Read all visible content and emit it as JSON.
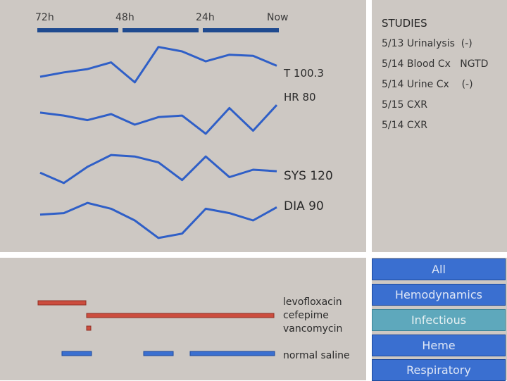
{
  "timeline": {
    "ticks": [
      "72h",
      "48h",
      "24h",
      "Now"
    ]
  },
  "vitals": [
    {
      "label": "T 100.3",
      "values": [
        98.2,
        98.6,
        98.9,
        99.5,
        97.7,
        100.9,
        100.5,
        99.6,
        100.2,
        100.1,
        99.2
      ]
    },
    {
      "label": "HR 80",
      "values": [
        85,
        83,
        80,
        84,
        77,
        82,
        83,
        71,
        88,
        73,
        90
      ]
    },
    {
      "label": "SYS 120",
      "values": [
        118,
        111,
        122,
        130,
        129,
        125,
        113,
        129,
        115,
        120,
        119
      ]
    },
    {
      "label": "DIA 90",
      "values": [
        88,
        89,
        96,
        92,
        84,
        72,
        75,
        92,
        89,
        84,
        93
      ]
    }
  ],
  "studies": {
    "title": "STUDIES",
    "items": [
      "5/13 Urinalysis  (-)",
      "5/14 Blood Cx   NGTD",
      "5/14 Urine Cx    (-)",
      "5/15 CXR",
      "5/14 CXR"
    ]
  },
  "medications": [
    {
      "name": "levofloxacin",
      "color": "#cc4d3e"
    },
    {
      "name": "cefepime",
      "color": "#cc4d3e"
    },
    {
      "name": "vancomycin",
      "color": "#cc4d3e"
    },
    {
      "name": "normal saline",
      "color": "#3a6fd0"
    }
  ],
  "filters": {
    "items": [
      "All",
      "Hemodynamics",
      "Infectious",
      "Heme",
      "Respiratory"
    ],
    "active": "Infectious"
  },
  "colors": {
    "line": "#2f5fc7",
    "timebar": "#1f4a8f",
    "antibiotic": "#cc4d3e",
    "fluid": "#3a6fd0",
    "panel": "#cdc8c3"
  }
}
